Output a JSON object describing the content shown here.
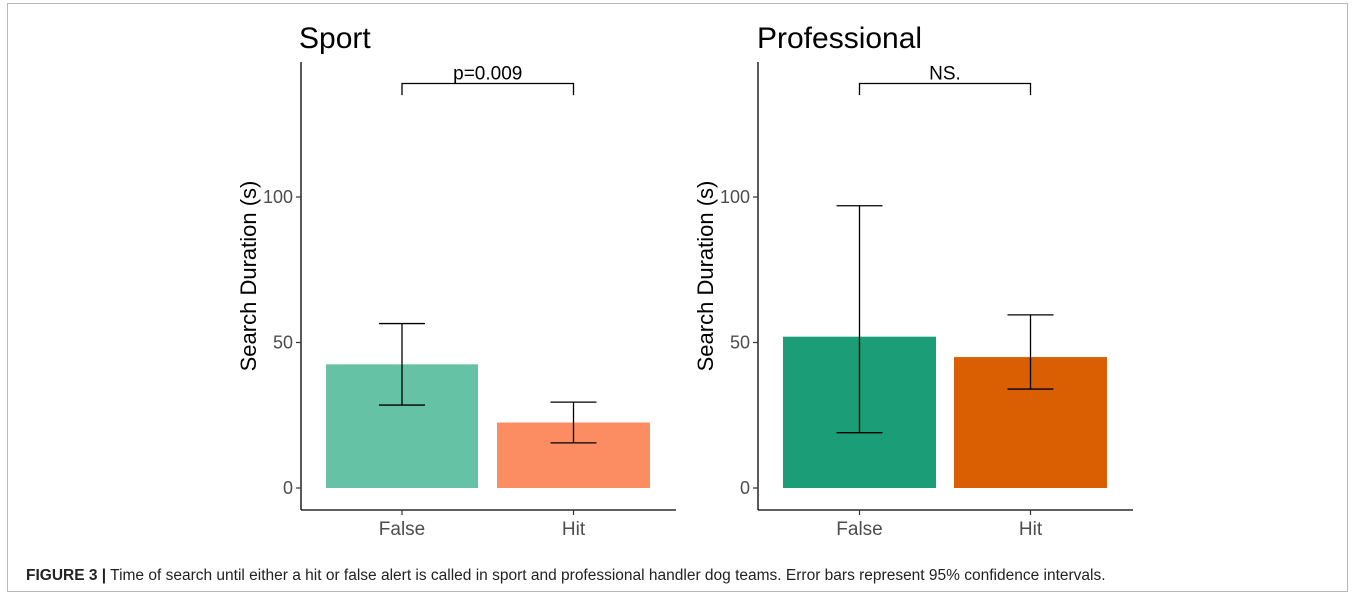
{
  "figure": {
    "caption_label": "FIGURE 3 |",
    "caption_text": "Time of search until either a hit or false alert is called in sport and professional handler dog teams. Error bars represent 95% confidence intervals."
  },
  "chart_data": [
    {
      "type": "bar",
      "title": "Sport",
      "ylabel": "Search Duration (s)",
      "xlabel": "",
      "ylim": [
        0,
        145
      ],
      "yticks": [
        0,
        50,
        100
      ],
      "categories": [
        "False",
        "Hit"
      ],
      "values": [
        42.5,
        22.5
      ],
      "ci_lower": [
        28.5,
        15.5
      ],
      "ci_upper": [
        56.5,
        29.5
      ],
      "colors": [
        "#66c2a5",
        "#fc8d62"
      ],
      "significance": {
        "label": "p=0.009",
        "y": 139,
        "drop": 135
      },
      "grid": false
    },
    {
      "type": "bar",
      "title": "Professional",
      "ylabel": "Search Duration (s)",
      "xlabel": "",
      "ylim": [
        0,
        145
      ],
      "yticks": [
        0,
        50,
        100
      ],
      "categories": [
        "False",
        "Hit"
      ],
      "values": [
        52,
        45
      ],
      "ci_lower": [
        19,
        34
      ],
      "ci_upper": [
        97,
        59.5
      ],
      "colors": [
        "#1b9e77",
        "#d95f02"
      ],
      "significance": {
        "label": "NS.",
        "y": 139,
        "drop": 135
      },
      "grid": false
    }
  ]
}
